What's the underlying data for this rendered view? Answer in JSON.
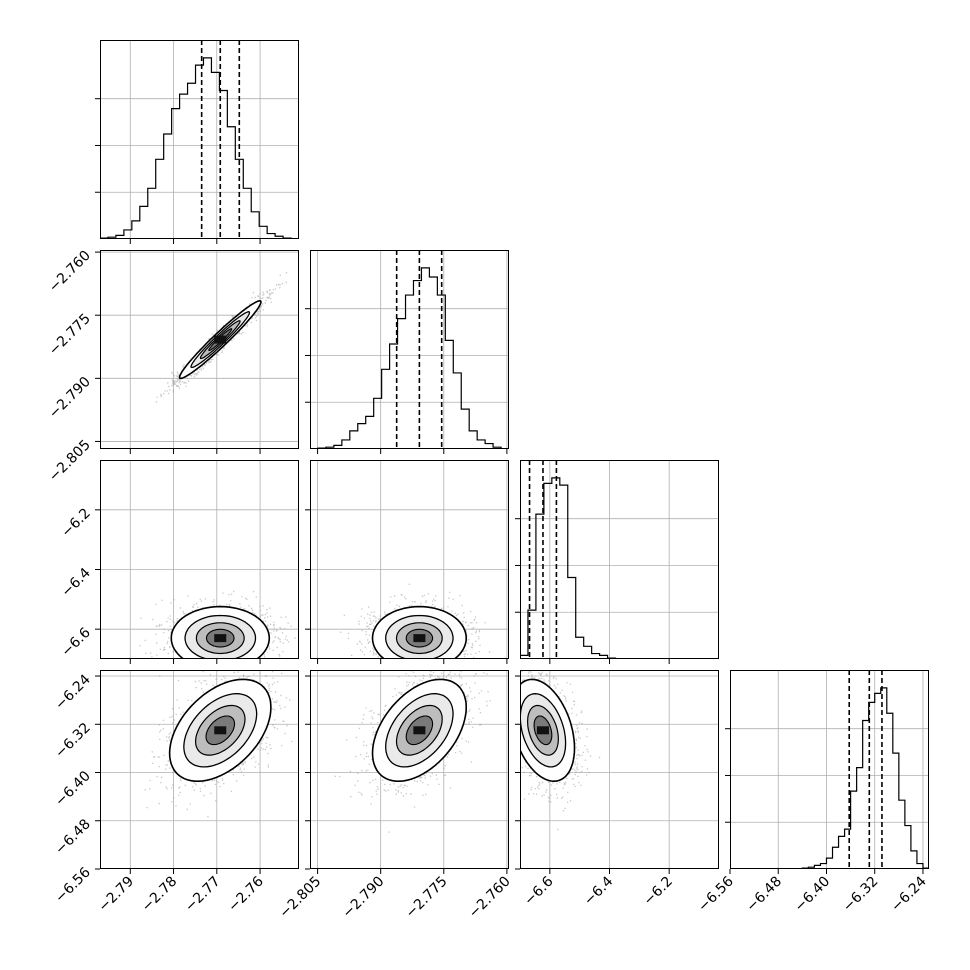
{
  "chart_data": {
    "type": "corner",
    "histogram_quantile_lines": "dashed",
    "params": [
      {
        "range": [
          -2.797,
          -2.751
        ],
        "ticks": [
          -2.79,
          -2.78,
          -2.77,
          -2.76
        ],
        "tick_labels": [
          "−2.79",
          "−2.78",
          "−2.77",
          "−2.76"
        ],
        "quantiles": [
          -2.7735,
          -2.7692,
          -2.7648
        ],
        "hist": [
          0.005,
          0.01,
          0.02,
          0.05,
          0.1,
          0.18,
          0.28,
          0.44,
          0.58,
          0.72,
          0.8,
          0.86,
          0.96,
          1.0,
          0.92,
          0.82,
          0.62,
          0.44,
          0.28,
          0.15,
          0.07,
          0.03,
          0.015,
          0.005,
          0.0
        ]
      },
      {
        "range": [
          -2.8068,
          -2.7595
        ],
        "ticks": [
          -2.805,
          -2.79,
          -2.775,
          -2.76
        ],
        "tick_labels": [
          "−2.805",
          "−2.790",
          "−2.775",
          "−2.760"
        ],
        "quantiles": [
          -2.7862,
          -2.7808,
          -2.7755
        ],
        "hist": [
          0.0,
          0.005,
          0.01,
          0.02,
          0.05,
          0.1,
          0.14,
          0.18,
          0.28,
          0.44,
          0.58,
          0.72,
          0.85,
          0.93,
          1.0,
          0.95,
          0.85,
          0.6,
          0.42,
          0.22,
          0.1,
          0.05,
          0.03,
          0.01,
          0.0
        ]
      },
      {
        "range": [
          -6.7,
          -6.033
        ],
        "ticks": [
          -6.6,
          -6.4,
          -6.2
        ],
        "tick_labels": [
          "−6.6",
          "−6.4",
          "−6.2"
        ],
        "quantiles": [
          -6.668,
          -6.623,
          -6.578
        ],
        "hist": [
          0.02,
          0.27,
          0.8,
          0.97,
          1.0,
          0.96,
          0.45,
          0.12,
          0.07,
          0.03,
          0.02,
          0.005,
          0.002,
          0.001,
          0.0,
          0.0,
          0.0,
          0.0,
          0.0,
          0.0,
          0.0,
          0.0,
          0.0,
          0.0,
          0.0
        ]
      },
      {
        "range": [
          -6.56,
          -6.23
        ],
        "ticks": [
          -6.56,
          -6.48,
          -6.4,
          -6.32,
          -6.24
        ],
        "tick_labels": [
          "−6.56",
          "−6.48",
          "−6.40",
          "−6.32",
          "−6.24"
        ],
        "quantiles": [
          -6.3623,
          -6.329,
          -6.308
        ],
        "hist": [
          0.0,
          0.0,
          0.0,
          0.0,
          0.0,
          0.0,
          0.0,
          0.0,
          0.0,
          0.0,
          0.0,
          0.0,
          0.005,
          0.01,
          0.02,
          0.03,
          0.06,
          0.12,
          0.18,
          0.22,
          0.43,
          0.56,
          0.82,
          0.92,
          0.97,
          1.0,
          0.86,
          0.64,
          0.38,
          0.24,
          0.1,
          0.03,
          0.005
        ]
      }
    ],
    "pairs": [
      {
        "row": 1,
        "col": 0,
        "center": [
          -2.7692,
          -2.7808
        ],
        "sigma": [
          0.0049,
          0.0048
        ],
        "rho": 0.97,
        "seed": 11
      },
      {
        "row": 2,
        "col": 0,
        "center": [
          -2.7692,
          -6.63
        ],
        "sigma": [
          0.0059,
          0.055
        ],
        "rho": 0.0,
        "seed": 23
      },
      {
        "row": 2,
        "col": 1,
        "center": [
          -2.7808,
          -6.63
        ],
        "sigma": [
          0.0058,
          0.055
        ],
        "rho": 0.0,
        "seed": 37
      },
      {
        "row": 3,
        "col": 0,
        "center": [
          -2.7692,
          -6.33
        ],
        "sigma": [
          0.0061,
          0.044
        ],
        "rho": 0.45,
        "seed": 41
      },
      {
        "row": 3,
        "col": 1,
        "center": [
          -2.7808,
          -6.33
        ],
        "sigma": [
          0.0058,
          0.044
        ],
        "rho": 0.45,
        "seed": 53
      },
      {
        "row": 3,
        "col": 2,
        "center": [
          -6.623,
          -6.33
        ],
        "sigma": [
          0.055,
          0.044
        ],
        "rho": -0.35,
        "seed": 67
      }
    ]
  }
}
